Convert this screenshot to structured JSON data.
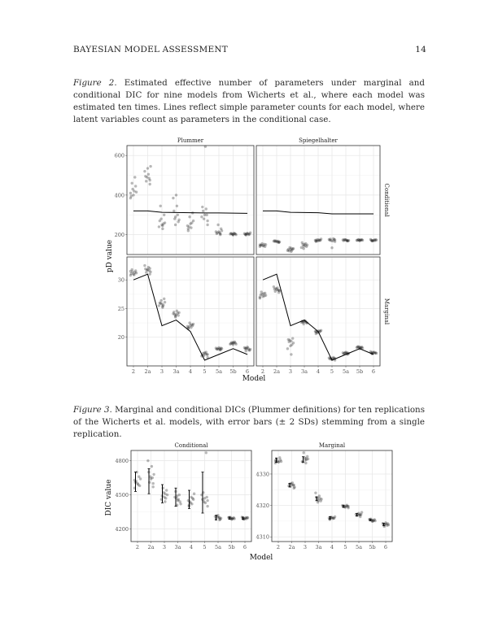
{
  "header": {
    "title": "BAYESIAN MODEL ASSESSMENT",
    "page_number": "14"
  },
  "figure2": {
    "caption_label": "Figure 2",
    "caption_text": ". Estimated effective number of parameters under marginal and conditional DIC for nine models from Wicherts et al., where each model was estimated ten times. Lines reflect simple parameter counts for each model, where latent variables count as parameters in the conditional case."
  },
  "figure3": {
    "caption_label": "Figure 3",
    "caption_text": ". Marginal and conditional DICs (Plummer definitions) for ten replications of the Wicherts et al. models, with error bars (± 2 SDs) stemming from a single replication."
  },
  "chart_data": [
    {
      "type": "scatter",
      "id": "fig2",
      "ylabel": "pD value",
      "xlabel": "Model",
      "categories": [
        "2",
        "2a",
        "3",
        "3a",
        "4",
        "5",
        "5a",
        "5b",
        "6"
      ],
      "column_titles": [
        "Plummer",
        "Spiegelhalter"
      ],
      "row_titles": [
        "Conditional",
        "Marginal"
      ],
      "panels": [
        {
          "col": "Plummer",
          "row": "Conditional",
          "ylim": [
            100,
            650
          ],
          "yticks": [
            200,
            400,
            600
          ],
          "points": [
            [
              385,
              400,
              415,
              430,
              445,
              460,
              490,
              395,
              420,
              410
            ],
            [
              455,
              470,
              485,
              495,
              505,
              520,
              535,
              545,
              490,
              475
            ],
            [
              230,
              240,
              250,
              260,
              280,
              300,
              345,
              255,
              270,
              245
            ],
            [
              250,
              265,
              280,
              300,
              320,
              345,
              385,
              400,
              275,
              290
            ],
            [
              220,
              235,
              245,
              255,
              270,
              290,
              310,
              240,
              260,
              230
            ],
            [
              250,
              280,
              300,
              320,
              330,
              340,
              645,
              290,
              300,
              270
            ],
            [
              200,
              205,
              210,
              215,
              215,
              220,
              250,
              230,
              210,
              205
            ],
            [
              198,
              200,
              202,
              204,
              205,
              206,
              207,
              208,
              203,
              201
            ],
            [
              198,
              200,
              202,
              204,
              206,
              208,
              210,
              205,
              203,
              201
            ]
          ],
          "line": [
            320,
            320,
            313,
            312,
            311,
            310,
            310,
            309,
            308
          ]
        },
        {
          "col": "Spiegelhalter",
          "row": "Conditional",
          "ylim": [
            100,
            650
          ],
          "yticks": [
            200,
            400,
            600
          ],
          "points": [
            [
              140,
              145,
              150,
              155,
              140,
              148,
              152,
              146,
              143,
              149
            ],
            [
              160,
              165,
              168,
              170,
              163,
              167,
              166,
              164,
              169,
              162
            ],
            [
              115,
              120,
              125,
              130,
              135,
              128,
              118,
              122,
              126,
              132
            ],
            [
              130,
              140,
              150,
              155,
              160,
              145,
              135,
              152,
              148,
              142
            ],
            [
              165,
              170,
              172,
              175,
              178,
              168,
              171,
              174,
              173,
              169
            ],
            [
              165,
              170,
              175,
              178,
              180,
              172,
              168,
              176,
              134,
              174
            ],
            [
              168,
              170,
              172,
              174,
              175,
              171,
              173,
              169,
              176,
              170
            ],
            [
              170,
              172,
              174,
              175,
              176,
              173,
              171,
              174,
              172,
              170
            ],
            [
              168,
              170,
              172,
              174,
              176,
              171,
              173,
              169,
              175,
              170
            ]
          ],
          "line": [
            320,
            320,
            313,
            312,
            311,
            305,
            305,
            305,
            305
          ]
        },
        {
          "col": "Plummer",
          "row": "Marginal",
          "ylim": [
            15,
            34
          ],
          "yticks": [
            20,
            25,
            30
          ],
          "points": [
            [
              30.8,
              31.0,
              31.2,
              31.4,
              31.6,
              31.8,
              31.3,
              31.1,
              30.9,
              31.5
            ],
            [
              31.0,
              31.3,
              31.6,
              31.9,
              32.2,
              32.5,
              31.8,
              31.4,
              31.7,
              32.0
            ],
            [
              25.2,
              25.5,
              25.8,
              26.1,
              26.4,
              26.7,
              25.9,
              25.6,
              26.0,
              25.4
            ],
            [
              23.5,
              23.8,
              24.0,
              24.2,
              24.4,
              24.6,
              24.1,
              23.9,
              24.3,
              23.7
            ],
            [
              21.5,
              21.7,
              21.9,
              22.1,
              22.3,
              22.5,
              22.0,
              21.8,
              22.2,
              21.6
            ],
            [
              16.5,
              16.8,
              17.0,
              17.2,
              17.4,
              16.9,
              17.1,
              16.7,
              17.3,
              17.0
            ],
            [
              17.8,
              17.9,
              18.0,
              18.1,
              18.2,
              18.0,
              17.9,
              18.1,
              18.0,
              17.8
            ],
            [
              18.7,
              18.8,
              18.9,
              19.0,
              19.1,
              19.2,
              18.9,
              19.0,
              18.8,
              19.1
            ],
            [
              17.6,
              17.8,
              18.0,
              18.1,
              18.2,
              18.3,
              17.9,
              18.0,
              17.7,
              18.1
            ]
          ],
          "line": [
            30.0,
            31.0,
            22.0,
            23.0,
            21.0,
            16.0,
            17.0,
            18.0,
            17.0
          ]
        },
        {
          "col": "Spiegelhalter",
          "row": "Marginal",
          "ylim": [
            15,
            34
          ],
          "yticks": [
            20,
            25,
            30
          ],
          "points": [
            [
              26.8,
              27.1,
              27.3,
              27.5,
              27.7,
              27.9,
              27.2,
              27.4,
              27.6,
              27.0
            ],
            [
              27.8,
              28.0,
              28.2,
              28.4,
              28.6,
              28.8,
              28.3,
              28.1,
              28.5,
              28.2
            ],
            [
              17.0,
              18.0,
              18.5,
              19.0,
              19.5,
              19.8,
              19.2,
              18.7,
              19.6,
              19.3
            ],
            [
              22.3,
              22.5,
              22.6,
              22.7,
              22.8,
              22.9,
              22.6,
              22.7,
              22.5,
              22.8
            ],
            [
              20.6,
              20.8,
              21.0,
              21.1,
              21.2,
              20.9,
              21.0,
              20.8,
              21.1,
              21.0
            ],
            [
              16.0,
              16.2,
              16.3,
              16.4,
              16.5,
              16.2,
              16.3,
              16.4,
              16.1,
              16.3
            ],
            [
              17.0,
              17.1,
              17.2,
              17.3,
              17.4,
              17.2,
              17.3,
              17.1,
              17.2,
              17.3
            ],
            [
              18.0,
              18.1,
              18.2,
              18.3,
              18.4,
              18.2,
              18.3,
              18.1,
              18.2,
              18.3
            ],
            [
              17.1,
              17.2,
              17.3,
              17.4,
              17.5,
              17.3,
              17.2,
              17.4,
              17.3,
              17.2
            ]
          ],
          "line": [
            30.0,
            31.0,
            22.0,
            23.0,
            21.0,
            16.0,
            17.0,
            18.0,
            17.0
          ]
        }
      ]
    },
    {
      "type": "scatter",
      "id": "fig3",
      "ylabel": "DIC value",
      "xlabel": "Model",
      "categories": [
        "2",
        "2a",
        "3",
        "3a",
        "4",
        "5",
        "5a",
        "5b",
        "6"
      ],
      "panels": [
        {
          "title": "Conditional",
          "ylim": [
            4090,
            4890
          ],
          "yticks": [
            4200,
            4500,
            4800
          ],
          "points": [
            [
              4560,
              4600,
              4640,
              4700,
              4580,
              4620,
              4660,
              4610,
              4590,
              4630
            ],
            [
              4570,
              4610,
              4650,
              4700,
              4750,
              4800,
              4640,
              4680,
              4660,
              4600
            ],
            [
              4440,
              4460,
              4480,
              4500,
              4520,
              4540,
              4560,
              4470,
              4490,
              4510
            ],
            [
              4410,
              4440,
              4470,
              4500,
              4530,
              4460,
              4480,
              4450,
              4420,
              4490
            ],
            [
              4400,
              4420,
              4450,
              4480,
              4510,
              4430,
              4460,
              4440,
              4470,
              4410
            ],
            [
              4400,
              4440,
              4480,
              4520,
              4870,
              4460,
              4430,
              4500,
              4470,
              4450
            ],
            [
              4280,
              4290,
              4300,
              4310,
              4320,
              4295,
              4305,
              4285,
              4315,
              4300
            ],
            [
              4285,
              4290,
              4295,
              4300,
              4305,
              4292,
              4298,
              4288,
              4302,
              4296
            ],
            [
              4285,
              4290,
              4295,
              4300,
              4305,
              4292,
              4298,
              4288,
              4302,
              4296
            ]
          ],
          "errorbars": [
            [
              4530,
              4700
            ],
            [
              4510,
              4730
            ],
            [
              4430,
              4590
            ],
            [
              4400,
              4560
            ],
            [
              4380,
              4540
            ],
            [
              4340,
              4700
            ],
            [
              4280,
              4320
            ],
            [
              4285,
              4305
            ],
            [
              4285,
              4305
            ]
          ]
        },
        {
          "title": "Marginal",
          "ylim": [
            4308.5,
            4337.5
          ],
          "yticks": [
            4310,
            4320,
            4330
          ],
          "points": [
            [
              4333.5,
              4333.8,
              4334.0,
              4334.2,
              4334.5,
              4334.8,
              4335.2,
              4334.1,
              4333.9,
              4334.3
            ],
            [
              4325.5,
              4326.0,
              4326.4,
              4326.8,
              4327.2,
              4326.2,
              4326.6,
              4325.8,
              4327.0,
              4326.5
            ],
            [
              4333.5,
              4334.0,
              4334.4,
              4334.8,
              4335.2,
              4335.6,
              4336.8,
              4334.6,
              4333.8,
              4335.0
            ],
            [
              4321.0,
              4321.4,
              4321.8,
              4322.2,
              4322.6,
              4323.0,
              4324.0,
              4321.6,
              4322.0,
              4322.4
            ],
            [
              4315.5,
              4315.8,
              4316.0,
              4316.2,
              4316.4,
              4316.1,
              4315.9,
              4316.3,
              4316.0,
              4315.7
            ],
            [
              4319.2,
              4319.5,
              4319.7,
              4319.9,
              4320.1,
              4319.6,
              4319.8,
              4320.0,
              4319.4,
              4319.7
            ],
            [
              4316.4,
              4316.7,
              4317.0,
              4317.2,
              4317.5,
              4317.8,
              4316.9,
              4317.1,
              4317.3,
              4317.0
            ],
            [
              4314.9,
              4315.1,
              4315.3,
              4315.5,
              4315.7,
              4315.2,
              4315.4,
              4315.0,
              4315.6,
              4315.3
            ],
            [
              4313.3,
              4313.6,
              4313.9,
              4314.1,
              4314.3,
              4314.5,
              4313.8,
              4314.0,
              4314.2,
              4313.7
            ]
          ],
          "errorbars": [
            [
              4333.7,
              4335.1
            ],
            [
              4325.9,
              4327.0
            ],
            [
              4333.8,
              4335.5
            ],
            [
              4321.5,
              4322.7
            ],
            [
              4315.7,
              4316.4
            ],
            [
              4319.4,
              4320.0
            ],
            [
              4316.7,
              4317.4
            ],
            [
              4315.1,
              4315.6
            ],
            [
              4313.6,
              4314.3
            ]
          ]
        }
      ]
    }
  ]
}
